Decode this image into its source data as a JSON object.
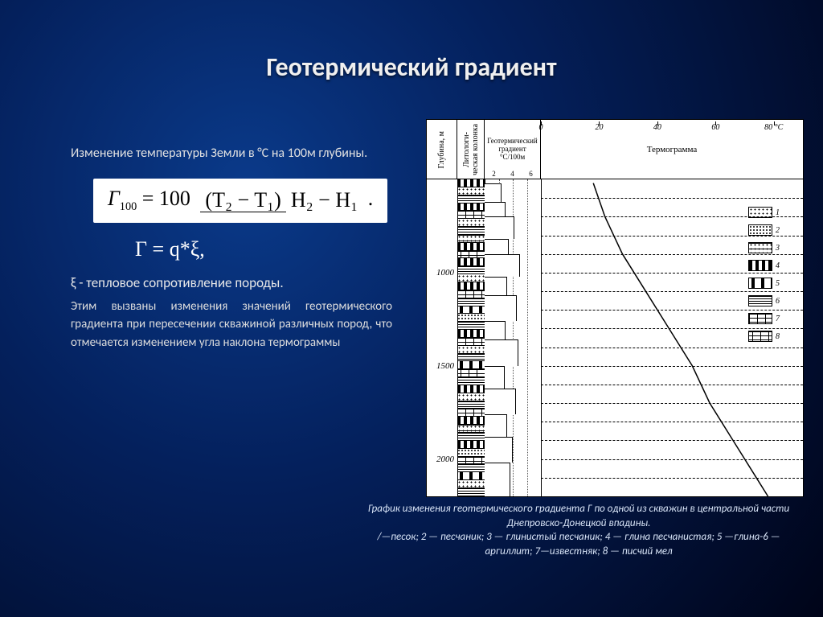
{
  "title": "Геотермический градиент",
  "intro": "Изменение температуры Земли в °С на 100м глубины.",
  "formula": {
    "left": "Г",
    "left_sub": "100",
    "eq": " = 100 ",
    "num": "(T₂ − T₁)",
    "den": "H₂ − H₁",
    "tail": " ."
  },
  "formula2": "Г = q*ξ,",
  "xi_text": "ξ - тепловое сопротивление породы.",
  "body": "Этим вызваны изменения значений геотермического градиента при пересечении скважиной различных пород, что отмечается изменением угла наклона термограммы",
  "caption": "График изменения геотермического градиента Г по одной из скважин в центральной части Днепровско-Донецкой впадины.\n/—песок;   2 — песчаник;   3 — глинистый   песчаник;   4 — глина песчанистая;     5 —глина-6 — аргиллит;  7—известняк;  8 — писчий  мел",
  "diagram": {
    "headers": {
      "depth": "Глубина, м",
      "litho": "Литологи-\nческая\nколонка",
      "gradient_title": "Геотермический\nградиент",
      "gradient_unit": "°С/100м",
      "thermogram": "Термограмма"
    },
    "depth_range_m": [
      500,
      2200
    ],
    "depth_labels": [
      1000,
      1500,
      2000
    ],
    "dash_lines_m": [
      600,
      700,
      800,
      900,
      1000,
      1100,
      1200,
      1300,
      1400,
      1500,
      1600,
      1700,
      1800,
      1900,
      2000,
      2100,
      2200
    ],
    "gradient_axis": {
      "ticks": [
        2,
        4,
        6
      ],
      "max": 8
    },
    "temperature_axis": {
      "ticks": [
        0,
        20,
        40,
        60,
        80
      ],
      "unit": "°С",
      "max": 90
    },
    "thermogram_points": [
      {
        "depth": 520,
        "T": 18
      },
      {
        "depth": 700,
        "T": 22
      },
      {
        "depth": 900,
        "T": 28
      },
      {
        "depth": 1100,
        "T": 36
      },
      {
        "depth": 1300,
        "T": 44
      },
      {
        "depth": 1500,
        "T": 52
      },
      {
        "depth": 1700,
        "T": 58
      },
      {
        "depth": 1900,
        "T": 66
      },
      {
        "depth": 2100,
        "T": 74
      },
      {
        "depth": 2200,
        "T": 78
      }
    ],
    "gradient_steps": [
      {
        "d0": 520,
        "d1": 620,
        "g": 2.4
      },
      {
        "d0": 620,
        "d1": 700,
        "g": 3.0
      },
      {
        "d0": 700,
        "d1": 820,
        "g": 4.2
      },
      {
        "d0": 820,
        "d1": 900,
        "g": 3.4
      },
      {
        "d0": 900,
        "d1": 1020,
        "g": 5.0
      },
      {
        "d0": 1020,
        "d1": 1120,
        "g": 3.2
      },
      {
        "d0": 1120,
        "d1": 1260,
        "g": 4.6
      },
      {
        "d0": 1260,
        "d1": 1360,
        "g": 3.0
      },
      {
        "d0": 1360,
        "d1": 1500,
        "g": 4.8
      },
      {
        "d0": 1500,
        "d1": 1620,
        "g": 2.8
      },
      {
        "d0": 1620,
        "d1": 1760,
        "g": 4.4
      },
      {
        "d0": 1760,
        "d1": 1880,
        "g": 3.2
      },
      {
        "d0": 1880,
        "d1": 2020,
        "g": 4.0
      },
      {
        "d0": 2020,
        "d1": 2200,
        "g": 3.6
      }
    ],
    "litho_strata": [
      "pat-dash",
      "pat-dots",
      "pat-hline",
      "pat-dash",
      "pat-brick",
      "pat-dots",
      "pat-hline",
      "pat-dotsln",
      "pat-dash",
      "pat-brick2",
      "pat-dash",
      "pat-hline",
      "pat-dots",
      "pat-dash",
      "pat-brick",
      "pat-hline",
      "pat-dashmid",
      "pat-dots-d",
      "pat-hline",
      "pat-dash",
      "pat-brick",
      "pat-dots",
      "pat-hline",
      "pat-dashmid",
      "pat-brick2",
      "pat-hline",
      "pat-dash",
      "pat-dots",
      "pat-hline",
      "pat-brick",
      "pat-dash",
      "pat-dotsln",
      "pat-hline",
      "pat-dash",
      "pat-dots-d",
      "pat-brick",
      "pat-hline",
      "pat-dashmid",
      "pat-dots",
      "pat-hline"
    ],
    "legend": [
      {
        "n": 1,
        "class": "pat-dots"
      },
      {
        "n": 2,
        "class": "pat-dots-d"
      },
      {
        "n": 3,
        "class": "pat-dotsln"
      },
      {
        "n": 4,
        "class": "pat-dash"
      },
      {
        "n": 5,
        "class": "pat-dashmid"
      },
      {
        "n": 6,
        "class": "pat-hline"
      },
      {
        "n": 7,
        "class": "pat-brick"
      },
      {
        "n": 8,
        "class": "pat-brick2"
      }
    ]
  },
  "colors": {
    "bg_outer": "#000418",
    "bg_inner": "#0a3a8a",
    "text": "#e8e8e8"
  }
}
